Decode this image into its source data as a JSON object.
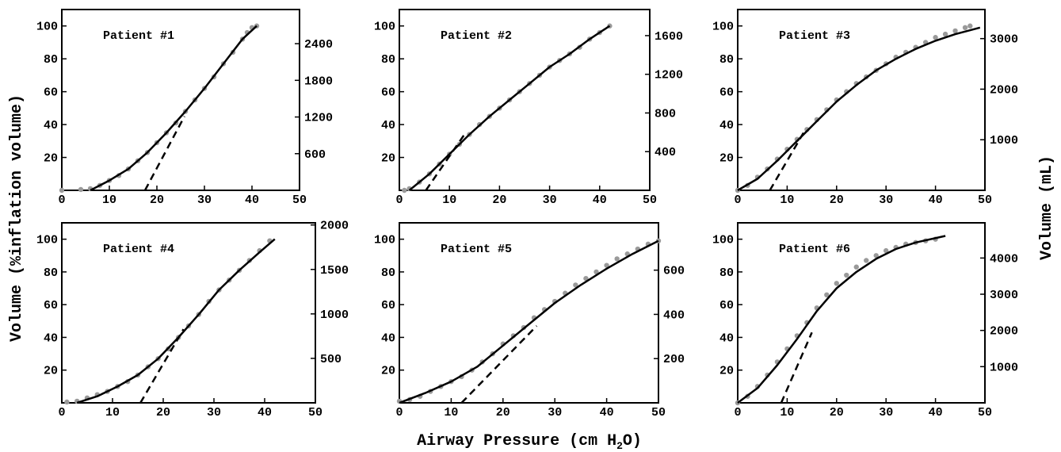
{
  "figure": {
    "y_label_left": "Volume (%inflation volume)",
    "y_label_right": "Volume (mL)",
    "x_label_prefix": "Airway Pressure (cm H",
    "x_label_sub": "2",
    "x_label_suffix": "O)"
  },
  "chart_data": [
    {
      "type": "scatter",
      "title": "Patient #1",
      "xlim": [
        0,
        50
      ],
      "ylim": [
        0,
        110
      ],
      "xticks": [
        0,
        10,
        20,
        30,
        40,
        50
      ],
      "yticks": [
        20,
        40,
        60,
        80,
        100
      ],
      "right_axis": {
        "ticks": [
          600,
          1200,
          1800,
          2400
        ],
        "max_at_100": 2690
      },
      "data_x": [
        0,
        4,
        6,
        8,
        10,
        12,
        14,
        16,
        18,
        20,
        22,
        24,
        26,
        28,
        30,
        32,
        34,
        36,
        38,
        39,
        40,
        41
      ],
      "data_y": [
        0,
        0.5,
        1,
        3,
        6,
        9,
        13,
        18,
        23,
        29,
        35,
        41,
        48,
        55,
        62,
        69,
        77,
        84,
        92,
        96,
        99,
        100
      ],
      "fit_x": [
        6,
        10,
        14,
        18,
        22,
        26,
        30,
        34,
        38,
        41
      ],
      "fit_y": [
        0,
        6,
        13,
        23,
        35,
        48,
        62,
        77,
        92,
        100
      ],
      "tangent": [
        [
          17.5,
          0
        ],
        [
          25.8,
          45
        ]
      ]
    },
    {
      "type": "scatter",
      "title": "Patient #2",
      "xlim": [
        0,
        50
      ],
      "ylim": [
        0,
        110
      ],
      "xticks": [
        0,
        10,
        20,
        30,
        40,
        50
      ],
      "yticks": [
        20,
        40,
        60,
        80,
        100
      ],
      "right_axis": {
        "ticks": [
          400,
          800,
          1200,
          1600
        ],
        "max_at_100": 1700
      },
      "data_x": [
        1,
        2,
        4,
        6,
        8,
        10,
        12,
        14,
        16,
        18,
        20,
        22,
        24,
        26,
        28,
        30,
        32,
        34,
        36,
        38,
        40,
        42
      ],
      "data_y": [
        0,
        1,
        5,
        10,
        16,
        22,
        28,
        34,
        40,
        45,
        50,
        55,
        60,
        65,
        70,
        75,
        79,
        83,
        87,
        92,
        96,
        100
      ],
      "fit_x": [
        2,
        6,
        10,
        14,
        18,
        22,
        26,
        30,
        34,
        38,
        42
      ],
      "fit_y": [
        0,
        10,
        22,
        34,
        45,
        55,
        65,
        75,
        83,
        92,
        100
      ],
      "tangent": [
        [
          5.3,
          0
        ],
        [
          13,
          34
        ]
      ]
    },
    {
      "type": "scatter",
      "title": "Patient #3",
      "xlim": [
        0,
        50
      ],
      "ylim": [
        0,
        110
      ],
      "xticks": [
        0,
        10,
        20,
        30,
        40,
        50
      ],
      "yticks": [
        20,
        40,
        60,
        80,
        100
      ],
      "right_axis": {
        "ticks": [
          1000,
          2000,
          3000
        ],
        "max_at_100": 3250
      },
      "data_x": [
        0,
        2,
        4,
        6,
        8,
        10,
        12,
        14,
        16,
        18,
        20,
        22,
        24,
        26,
        28,
        30,
        32,
        34,
        36,
        38,
        40,
        42,
        44,
        46,
        47
      ],
      "data_y": [
        0,
        3,
        8,
        13,
        19,
        25,
        31,
        37,
        43,
        49,
        55,
        60,
        65,
        69,
        73,
        77,
        81,
        84,
        87,
        90,
        93,
        95,
        97,
        99,
        100
      ],
      "fit_x": [
        0,
        4,
        8,
        12,
        16,
        20,
        24,
        28,
        32,
        36,
        40,
        44,
        49
      ],
      "fit_y": [
        0,
        7,
        18,
        30,
        42,
        54,
        64,
        73,
        80,
        86,
        91,
        95,
        99
      ],
      "tangent": [
        [
          6.5,
          0
        ],
        [
          13.5,
          36
        ]
      ]
    },
    {
      "type": "scatter",
      "title": "Patient #4",
      "xlim": [
        0,
        50
      ],
      "ylim": [
        0,
        110
      ],
      "xticks": [
        0,
        10,
        20,
        30,
        40,
        50
      ],
      "yticks": [
        20,
        40,
        60,
        80,
        100
      ],
      "right_axis": {
        "ticks": [
          500,
          1000,
          1500,
          2000
        ],
        "max_at_100": 1840
      },
      "data_x": [
        1,
        3,
        5,
        7,
        9,
        11,
        13,
        15,
        17,
        19,
        21,
        23,
        25,
        27,
        29,
        31,
        33,
        35,
        37,
        39,
        41
      ],
      "data_y": [
        0.5,
        1,
        3,
        5,
        7,
        10,
        13,
        17,
        22,
        27,
        33,
        40,
        47,
        54,
        62,
        69,
        75,
        81,
        87,
        93,
        99
      ],
      "fit_x": [
        3,
        7,
        11,
        15,
        19,
        23,
        27,
        31,
        35,
        39,
        42
      ],
      "fit_y": [
        0,
        4,
        10,
        17,
        27,
        40,
        54,
        69,
        81,
        92,
        100
      ],
      "tangent": [
        [
          15.5,
          0
        ],
        [
          24,
          45
        ]
      ]
    },
    {
      "type": "scatter",
      "title": "Patient #5",
      "xlim": [
        0,
        50
      ],
      "ylim": [
        0,
        110
      ],
      "xticks": [
        0,
        10,
        20,
        30,
        40,
        50
      ],
      "yticks": [
        20,
        40,
        60,
        80,
        100
      ],
      "right_axis": {
        "ticks": [
          200,
          400,
          600
        ],
        "max_at_100": 740
      },
      "data_x": [
        0,
        2,
        4,
        6,
        8,
        10,
        12,
        14,
        16,
        18,
        20,
        22,
        24,
        26,
        28,
        30,
        32,
        34,
        36,
        38,
        40,
        42,
        44,
        46,
        48,
        50
      ],
      "data_y": [
        1,
        2,
        4,
        7,
        10,
        13,
        16,
        20,
        25,
        30,
        36,
        41,
        46,
        52,
        57,
        62,
        67,
        72,
        76,
        80,
        84,
        88,
        91,
        94,
        97,
        99
      ],
      "fit_x": [
        0,
        5,
        10,
        15,
        20,
        25,
        30,
        35,
        40,
        45,
        50
      ],
      "fit_y": [
        0,
        6,
        13,
        22,
        35,
        48,
        61,
        72,
        82,
        91,
        99
      ],
      "tangent": [
        [
          12,
          0
        ],
        [
          26.5,
          47
        ]
      ]
    },
    {
      "type": "scatter",
      "title": "Patient #6",
      "xlim": [
        0,
        50
      ],
      "ylim": [
        0,
        110
      ],
      "xticks": [
        0,
        10,
        20,
        30,
        40,
        50
      ],
      "yticks": [
        20,
        40,
        60,
        80,
        100
      ],
      "right_axis": {
        "ticks": [
          1000,
          2000,
          3000,
          4000
        ],
        "max_at_100": 4520
      },
      "data_x": [
        0,
        2,
        4,
        6,
        8,
        10,
        12,
        14,
        16,
        18,
        20,
        22,
        24,
        26,
        28,
        30,
        32,
        34,
        36,
        38,
        40
      ],
      "data_y": [
        0,
        4,
        10,
        17,
        25,
        33,
        41,
        49,
        58,
        66,
        73,
        78,
        83,
        87,
        90,
        93,
        95,
        97,
        98,
        99,
        100
      ],
      "fit_x": [
        0,
        4,
        8,
        12,
        16,
        20,
        24,
        28,
        32,
        36,
        42
      ],
      "fit_y": [
        0,
        9,
        23,
        39,
        56,
        70,
        80,
        88,
        94,
        98,
        102
      ],
      "tangent": [
        [
          8.8,
          0
        ],
        [
          15,
          43
        ]
      ]
    }
  ]
}
